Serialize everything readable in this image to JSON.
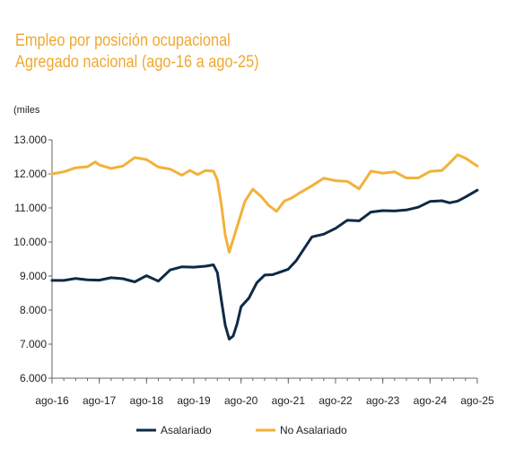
{
  "chart_data": {
    "type": "line",
    "title": "Empleo por posición ocupacional",
    "subtitle": "Agregado nacional (ago-16 a ago-25)",
    "ylabel": "(miles",
    "xlabel": "",
    "ylim": [
      6000,
      13000
    ],
    "yticks": [
      "6.000",
      "7.000",
      "8.000",
      "9.000",
      "10.000",
      "11.000",
      "12.000",
      "13.000"
    ],
    "ytick_values": [
      6000,
      7000,
      8000,
      9000,
      10000,
      11000,
      12000,
      13000
    ],
    "xticks": [
      "ago-16",
      "ago-17",
      "ago-18",
      "ago-19",
      "ago-20",
      "ago-21",
      "ago-22",
      "ago-23",
      "ago-24",
      "ago-25"
    ],
    "xtick_positions": [
      0,
      12,
      24,
      36,
      48,
      60,
      72,
      84,
      96,
      108
    ],
    "x_range": [
      0,
      108
    ],
    "grid": false,
    "legend_position": "bottom",
    "series": [
      {
        "name": "Asalariado",
        "color": "#0e2a47",
        "points": [
          [
            0,
            8870
          ],
          [
            3,
            8870
          ],
          [
            6,
            8930
          ],
          [
            9,
            8890
          ],
          [
            12,
            8880
          ],
          [
            15,
            8950
          ],
          [
            18,
            8920
          ],
          [
            21,
            8830
          ],
          [
            24,
            9010
          ],
          [
            27,
            8850
          ],
          [
            30,
            9180
          ],
          [
            33,
            9270
          ],
          [
            36,
            9260
          ],
          [
            39,
            9290
          ],
          [
            41,
            9330
          ],
          [
            42,
            9100
          ],
          [
            43,
            8300
          ],
          [
            44,
            7550
          ],
          [
            45,
            7150
          ],
          [
            46,
            7240
          ],
          [
            47,
            7600
          ],
          [
            48,
            8100
          ],
          [
            50,
            8350
          ],
          [
            52,
            8800
          ],
          [
            54,
            9030
          ],
          [
            56,
            9040
          ],
          [
            58,
            9120
          ],
          [
            60,
            9200
          ],
          [
            62,
            9450
          ],
          [
            64,
            9800
          ],
          [
            66,
            10150
          ],
          [
            69,
            10230
          ],
          [
            72,
            10400
          ],
          [
            75,
            10640
          ],
          [
            78,
            10620
          ],
          [
            81,
            10880
          ],
          [
            84,
            10920
          ],
          [
            87,
            10910
          ],
          [
            90,
            10940
          ],
          [
            93,
            11020
          ],
          [
            96,
            11190
          ],
          [
            99,
            11210
          ],
          [
            101,
            11150
          ],
          [
            103,
            11200
          ],
          [
            105,
            11320
          ],
          [
            108,
            11520
          ]
        ]
      },
      {
        "name": "No Asalariado",
        "color": "#f2b13a",
        "points": [
          [
            0,
            12000
          ],
          [
            3,
            12060
          ],
          [
            6,
            12180
          ],
          [
            9,
            12210
          ],
          [
            11,
            12350
          ],
          [
            12,
            12260
          ],
          [
            15,
            12160
          ],
          [
            18,
            12230
          ],
          [
            21,
            12480
          ],
          [
            24,
            12420
          ],
          [
            27,
            12200
          ],
          [
            30,
            12140
          ],
          [
            33,
            11960
          ],
          [
            35,
            12100
          ],
          [
            37,
            11980
          ],
          [
            39,
            12100
          ],
          [
            41,
            12080
          ],
          [
            42,
            11820
          ],
          [
            43,
            11100
          ],
          [
            44,
            10200
          ],
          [
            45,
            9700
          ],
          [
            47,
            10450
          ],
          [
            49,
            11200
          ],
          [
            51,
            11550
          ],
          [
            53,
            11350
          ],
          [
            55,
            11080
          ],
          [
            57,
            10900
          ],
          [
            59,
            11200
          ],
          [
            61,
            11300
          ],
          [
            63,
            11450
          ],
          [
            66,
            11650
          ],
          [
            69,
            11870
          ],
          [
            72,
            11800
          ],
          [
            75,
            11780
          ],
          [
            78,
            11560
          ],
          [
            81,
            12080
          ],
          [
            84,
            12020
          ],
          [
            87,
            12060
          ],
          [
            90,
            11880
          ],
          [
            93,
            11880
          ],
          [
            96,
            12070
          ],
          [
            99,
            12100
          ],
          [
            101,
            12320
          ],
          [
            103,
            12560
          ],
          [
            105,
            12460
          ],
          [
            108,
            12230
          ]
        ]
      }
    ]
  }
}
